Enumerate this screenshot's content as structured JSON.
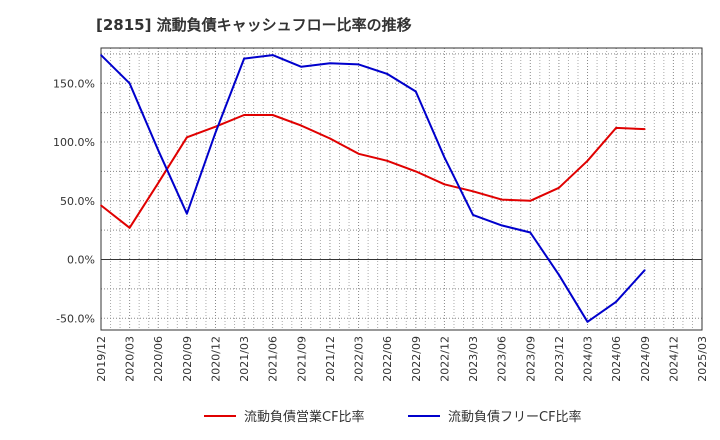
{
  "chart_data": {
    "type": "line",
    "title": "[2815]  流動負債キャッシュフロー比率の推移",
    "xlabel": "",
    "ylabel": "",
    "ylim": [
      -60,
      180
    ],
    "yticks": [
      -50,
      0,
      50,
      100,
      150
    ],
    "ytick_labels": [
      "-50.0%",
      "0.0%",
      "50.0%",
      "100.0%",
      "150.0%"
    ],
    "categories": [
      "2019/12",
      "2020/03",
      "2020/06",
      "2020/09",
      "2020/12",
      "2021/03",
      "2021/06",
      "2021/09",
      "2021/12",
      "2022/03",
      "2022/06",
      "2022/09",
      "2022/12",
      "2023/03",
      "2023/06",
      "2023/09",
      "2023/12",
      "2024/03",
      "2024/06",
      "2024/09",
      "2024/12",
      "2025/03"
    ],
    "grid": true,
    "legend_position": "bottom",
    "series": [
      {
        "name": "流動負債営業CF比率",
        "color": "#e00000",
        "values": [
          46,
          27,
          65,
          104,
          113,
          123,
          123,
          114,
          103,
          90,
          84,
          75,
          64,
          58,
          51,
          50,
          61,
          84,
          112,
          111,
          null,
          null
        ]
      },
      {
        "name": "流動負債フリーCF比率",
        "color": "#0000cc",
        "values": [
          174,
          150,
          93,
          39,
          108,
          171,
          174,
          164,
          167,
          166,
          158,
          143,
          87,
          38,
          29,
          23,
          -13,
          -53,
          -36,
          -9,
          null,
          null
        ]
      }
    ]
  }
}
